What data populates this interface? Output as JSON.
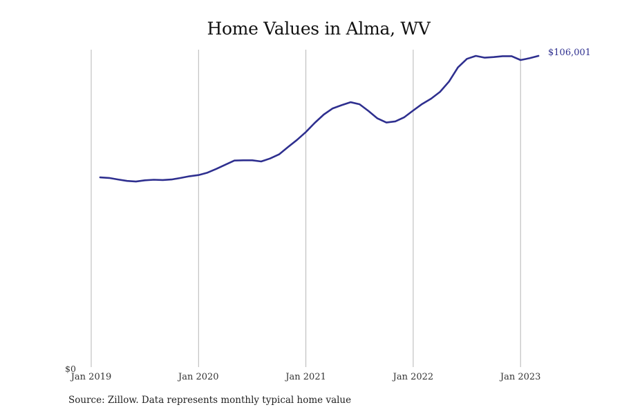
{
  "chart": {
    "title": "Home Values in Alma, WV",
    "source": "Source: Zillow. Data represents monthly typical home value",
    "end_label": "$106,001",
    "y_zero_label": "$0",
    "line_color": "#2e2f8f",
    "grid_color": "#b5b5b5"
  },
  "chart_data": {
    "type": "line",
    "title": "Home Values in Alma, WV",
    "xlabel": "",
    "ylabel": "",
    "ylim": [
      0,
      106001
    ],
    "grid": "vertical only",
    "legend": null,
    "x_tick_labels": [
      "Jan 2019",
      "Jan 2020",
      "Jan 2021",
      "Jan 2022",
      "Jan 2023"
    ],
    "y_tick_labels": [
      "$0"
    ],
    "annotations": [
      {
        "text": "$106,001",
        "at": "last point"
      }
    ],
    "series": [
      {
        "name": "Typical home value",
        "x": [
          "2019-02",
          "2019-03",
          "2019-04",
          "2019-05",
          "2019-06",
          "2019-07",
          "2019-08",
          "2019-09",
          "2019-10",
          "2019-11",
          "2019-12",
          "2020-01",
          "2020-02",
          "2020-03",
          "2020-04",
          "2020-05",
          "2020-06",
          "2020-07",
          "2020-08",
          "2020-09",
          "2020-10",
          "2020-11",
          "2020-12",
          "2021-01",
          "2021-02",
          "2021-03",
          "2021-04",
          "2021-05",
          "2021-06",
          "2021-07",
          "2021-08",
          "2021-09",
          "2021-10",
          "2021-11",
          "2021-12",
          "2022-01",
          "2022-02",
          "2022-03",
          "2022-04",
          "2022-05",
          "2022-06",
          "2022-07",
          "2022-08",
          "2022-09",
          "2022-10",
          "2022-11",
          "2022-12",
          "2023-01",
          "2023-02",
          "2023-03"
        ],
        "values": [
          64800,
          64600,
          64100,
          63600,
          63400,
          63800,
          64000,
          63900,
          64100,
          64600,
          65200,
          65600,
          66400,
          67700,
          69100,
          70500,
          70600,
          70600,
          70200,
          71200,
          72600,
          75100,
          77500,
          80200,
          83300,
          86100,
          88200,
          89300,
          90300,
          89600,
          87300,
          84800,
          83400,
          83800,
          85200,
          87500,
          89700,
          91500,
          93800,
          97300,
          102100,
          105000,
          106000,
          105400,
          105600,
          105900,
          105900,
          104600,
          105200,
          106001
        ]
      }
    ]
  }
}
